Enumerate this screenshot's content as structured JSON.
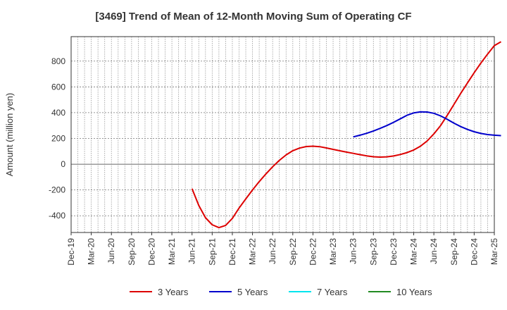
{
  "chart_data": {
    "type": "line",
    "title": "[3469]  Trend of Mean of 12-Month Moving Sum of Operating CF",
    "xlabel": "",
    "ylabel": "Amount (million yen)",
    "ylim": [
      -530,
      990
    ],
    "yticks": [
      -400,
      -200,
      0,
      200,
      400,
      600,
      800
    ],
    "ytick_labels": [
      "-400",
      "-200",
      "0",
      "200",
      "400",
      "600",
      "800"
    ],
    "grid": true,
    "legend_position": "bottom",
    "x_categories": [
      "Dec-19",
      "Mar-20",
      "Jun-20",
      "Sep-20",
      "Dec-20",
      "Mar-21",
      "Jun-21",
      "Sep-21",
      "Dec-21",
      "Mar-22",
      "Jun-22",
      "Sep-22",
      "Dec-22",
      "Mar-23",
      "Jun-23",
      "Sep-23",
      "Dec-23",
      "Mar-24",
      "Jun-24",
      "Sep-24",
      "Dec-24",
      "Mar-25"
    ],
    "x_index_unit": "months since Dec-19",
    "series": [
      {
        "name": "3 Years",
        "color": "#dd0000",
        "points": [
          [
            18,
            -190
          ],
          [
            19,
            -320
          ],
          [
            20,
            -415
          ],
          [
            21,
            -470
          ],
          [
            22,
            -492
          ],
          [
            23,
            -475
          ],
          [
            24,
            -420
          ],
          [
            25,
            -340
          ],
          [
            26,
            -270
          ],
          [
            27,
            -200
          ],
          [
            28,
            -135
          ],
          [
            29,
            -75
          ],
          [
            30,
            -20
          ],
          [
            31,
            30
          ],
          [
            32,
            72
          ],
          [
            33,
            105
          ],
          [
            34,
            125
          ],
          [
            35,
            137
          ],
          [
            36,
            140
          ],
          [
            37,
            136
          ],
          [
            38,
            126
          ],
          [
            39,
            115
          ],
          [
            40,
            104
          ],
          [
            41,
            94
          ],
          [
            42,
            84
          ],
          [
            43,
            74
          ],
          [
            44,
            65
          ],
          [
            45,
            58
          ],
          [
            46,
            55
          ],
          [
            47,
            57
          ],
          [
            48,
            64
          ],
          [
            49,
            75
          ],
          [
            50,
            90
          ],
          [
            51,
            110
          ],
          [
            52,
            140
          ],
          [
            53,
            180
          ],
          [
            54,
            235
          ],
          [
            55,
            300
          ],
          [
            56,
            380
          ],
          [
            57,
            465
          ],
          [
            58,
            550
          ],
          [
            59,
            630
          ],
          [
            60,
            710
          ],
          [
            61,
            785
          ],
          [
            62,
            855
          ],
          [
            63,
            920
          ],
          [
            64,
            950
          ]
        ]
      },
      {
        "name": "5 Years",
        "color": "#0000cc",
        "points": [
          [
            42,
            212
          ],
          [
            43,
            225
          ],
          [
            44,
            240
          ],
          [
            45,
            258
          ],
          [
            46,
            278
          ],
          [
            47,
            300
          ],
          [
            48,
            325
          ],
          [
            49,
            352
          ],
          [
            50,
            380
          ],
          [
            51,
            398
          ],
          [
            52,
            406
          ],
          [
            53,
            405
          ],
          [
            54,
            395
          ],
          [
            55,
            375
          ],
          [
            56,
            348
          ],
          [
            57,
            318
          ],
          [
            58,
            292
          ],
          [
            59,
            270
          ],
          [
            60,
            252
          ],
          [
            61,
            239
          ],
          [
            62,
            230
          ],
          [
            63,
            225
          ],
          [
            64,
            222
          ]
        ]
      },
      {
        "name": "7 Years",
        "color": "#00e5ee",
        "points": []
      },
      {
        "name": "10 Years",
        "color": "#228b22",
        "points": []
      }
    ]
  }
}
